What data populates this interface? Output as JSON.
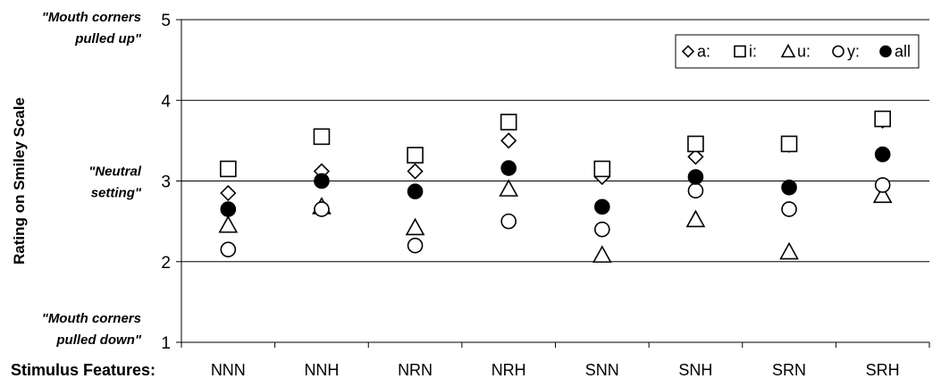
{
  "chart_data": {
    "type": "scatter",
    "ylabel": "Rating on Smiley Scale",
    "xlabel": "Stimulus Features:",
    "categories": [
      "NNN",
      "NNH",
      "NRN",
      "NRH",
      "SNN",
      "SNH",
      "SRN",
      "SRH"
    ],
    "ylim": [
      1,
      5
    ],
    "yticks": [
      "1",
      "2",
      "3",
      "4",
      "5"
    ],
    "grid": true,
    "legend_position": "top-right",
    "annotations": [
      {
        "lines": [
          "\"Mouth corners",
          "pulled up\""
        ],
        "at_y": 5
      },
      {
        "lines": [
          "\"Neutral",
          "setting\""
        ],
        "at_y": 3
      },
      {
        "lines": [
          "\"Mouth corners",
          "pulled down\""
        ],
        "at_y": 1
      }
    ],
    "series": [
      {
        "name": "a:",
        "marker": "diamond",
        "values": [
          2.85,
          3.12,
          3.12,
          3.5,
          3.05,
          3.3,
          3.45,
          3.75
        ]
      },
      {
        "name": "i:",
        "marker": "square",
        "values": [
          3.15,
          3.55,
          3.32,
          3.73,
          3.15,
          3.46,
          3.46,
          3.77
        ]
      },
      {
        "name": "u:",
        "marker": "triangle",
        "values": [
          2.45,
          2.68,
          2.42,
          2.9,
          2.08,
          2.52,
          2.12,
          2.82
        ]
      },
      {
        "name": "y:",
        "marker": "circle",
        "values": [
          2.15,
          2.65,
          2.2,
          2.5,
          2.4,
          2.88,
          2.65,
          2.95
        ]
      },
      {
        "name": "all",
        "marker": "filled-circle",
        "values": [
          2.65,
          3.0,
          2.87,
          3.16,
          2.68,
          3.05,
          2.92,
          3.33
        ]
      }
    ]
  }
}
